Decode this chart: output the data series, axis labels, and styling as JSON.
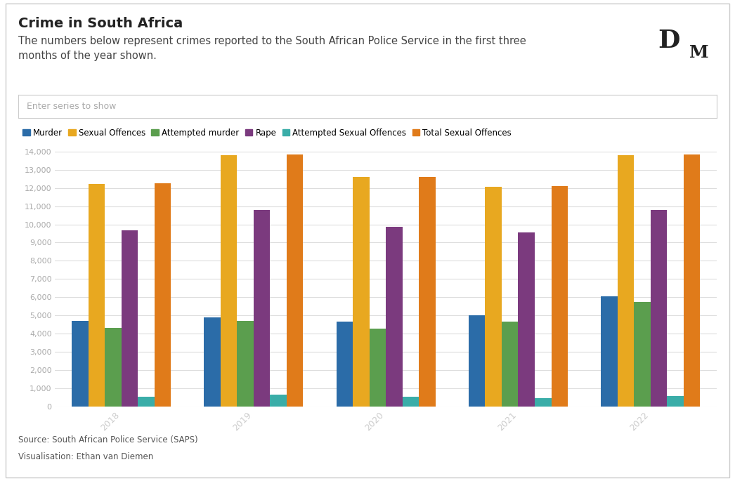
{
  "title": "Crime in South Africa",
  "subtitle": "The numbers below represent crimes reported to the South African Police Service in the first three\nmonths of the year shown.",
  "search_placeholder": "Enter series to show",
  "source_text": "Source: South African Police Service (SAPS)",
  "viz_text": "Visualisation: Ethan van Diemen",
  "years": [
    2018,
    2019,
    2020,
    2021,
    2022
  ],
  "series": [
    {
      "name": "Murder",
      "color": "#2b6ca8",
      "values": [
        4700,
        4900,
        4650,
        5000,
        6050
      ]
    },
    {
      "name": "Sexual Offences",
      "color": "#e8a820",
      "values": [
        12200,
        13800,
        12600,
        12050,
        13800
      ]
    },
    {
      "name": "Attempted murder",
      "color": "#5b9e4e",
      "values": [
        4300,
        4680,
        4270,
        4640,
        5720
      ]
    },
    {
      "name": "Rape",
      "color": "#7b3a7e",
      "values": [
        9680,
        10800,
        9850,
        9550,
        10800
      ]
    },
    {
      "name": "Attempted Sexual Offences",
      "color": "#3aada8",
      "values": [
        520,
        640,
        520,
        450,
        580
      ]
    },
    {
      "name": "Total Sexual Offences",
      "color": "#e07b1a",
      "values": [
        12250,
        13820,
        12600,
        12100,
        13820
      ]
    }
  ],
  "ylim": [
    0,
    14000
  ],
  "yticks": [
    0,
    1000,
    2000,
    3000,
    4000,
    5000,
    6000,
    7000,
    8000,
    9000,
    10000,
    11000,
    12000,
    13000,
    14000
  ],
  "background_color": "#ffffff",
  "plot_bg_color": "#ffffff",
  "grid_color": "#dddddd",
  "title_fontsize": 14,
  "subtitle_fontsize": 10.5,
  "tick_label_color": "#aaaaaa",
  "year_label_color": "#cccccc",
  "legend_fontsize": 8.5,
  "footer_fontsize": 8.5
}
